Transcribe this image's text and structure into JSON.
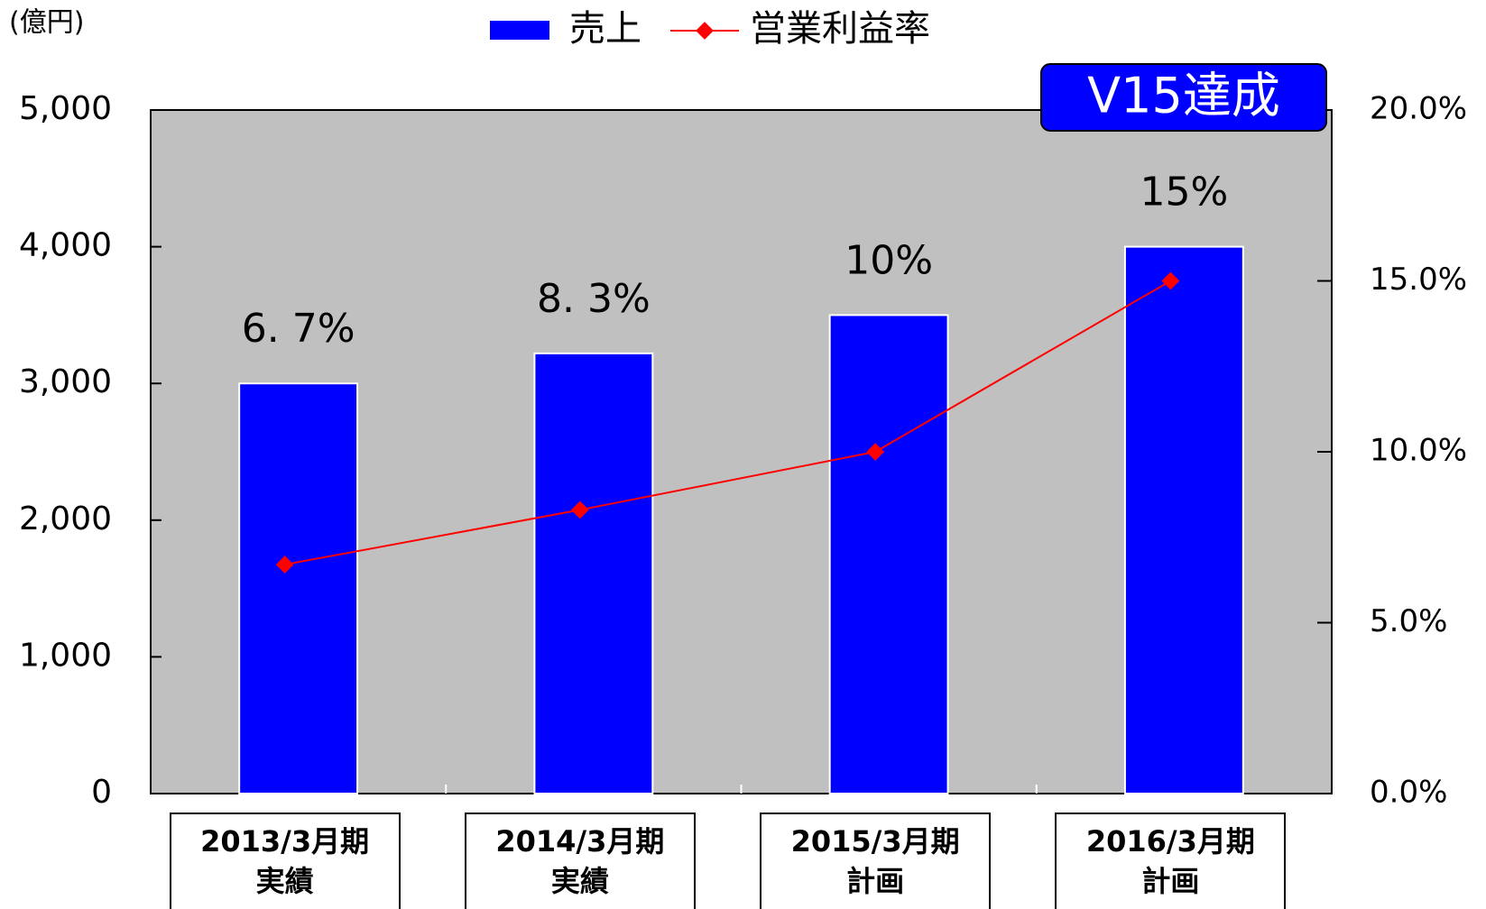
{
  "chart_data": {
    "type": "bar",
    "unit_label": "(億円)",
    "annotation": "V15達成",
    "categories": [
      "2013/3月期\n実績",
      "2014/3月期\n実績",
      "2015/3月期\n計画",
      "2016/3月期\n計画"
    ],
    "series": [
      {
        "name": "売上",
        "color": "#0000ff",
        "type": "bar",
        "values": [
          3000,
          3220,
          3500,
          4000
        ]
      },
      {
        "name": "営業利益率",
        "color": "#ff0000",
        "type": "line",
        "axis": "y2",
        "values": [
          6.7,
          8.3,
          10,
          15
        ],
        "value_labels": [
          "6. 7%",
          "8. 3%",
          "10%",
          "15%"
        ]
      }
    ],
    "ylim": [
      0,
      5000
    ],
    "yticks": [
      0,
      {
        "value": 1000,
        "label": "1,000"
      },
      {
        "value": 2000,
        "label": "2,000"
      },
      {
        "value": 3000,
        "label": "3,000"
      },
      {
        "value": 4000,
        "label": "4,000"
      },
      {
        "value": 5000,
        "label": "5,000"
      }
    ],
    "y2lim": [
      0,
      20
    ],
    "y2ticks": [
      {
        "value": 0,
        "label": "0.0%"
      },
      {
        "value": 5,
        "label": "5.0%"
      },
      {
        "value": 10,
        "label": "10.0%"
      },
      {
        "value": 15,
        "label": "15.0%"
      },
      {
        "value": 20,
        "label": "20.0%"
      }
    ],
    "plot_background": "#c0c0c0",
    "legend": "top"
  }
}
